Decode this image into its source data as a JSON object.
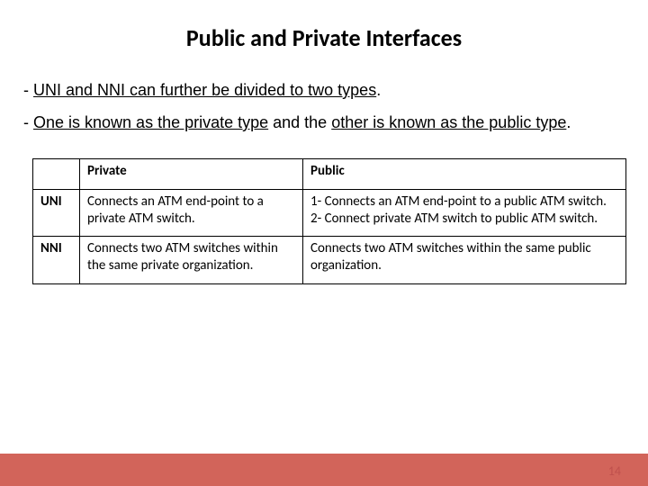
{
  "title": "Public and Private Interfaces",
  "para1_pre": "- ",
  "para1_u": "UNI and NNI can further be divided to two types",
  "para1_post": ".",
  "para2_pre": "- ",
  "para2_u1": "One is known as the private type",
  "para2_mid": " and the ",
  "para2_u2": "other is known as the public type",
  "para2_post": ".",
  "table": {
    "header_blank": "",
    "header_private": "Private",
    "header_public": "Public",
    "row1_label": "UNI",
    "row1_private": "Connects an ATM end-point to a private ATM switch.",
    "row1_public": "1- Connects an ATM end-point to a public ATM switch.\n2- Connect private ATM switch to  public ATM switch.",
    "row2_label": "NNI",
    "row2_private": "Connects two ATM switches within the same private organization.",
    "row2_public": "Connects two ATM switches within the same public organization."
  },
  "page_number": "14",
  "colors": {
    "footer_bar": "#d2645a",
    "page_num": "#bf504d"
  }
}
